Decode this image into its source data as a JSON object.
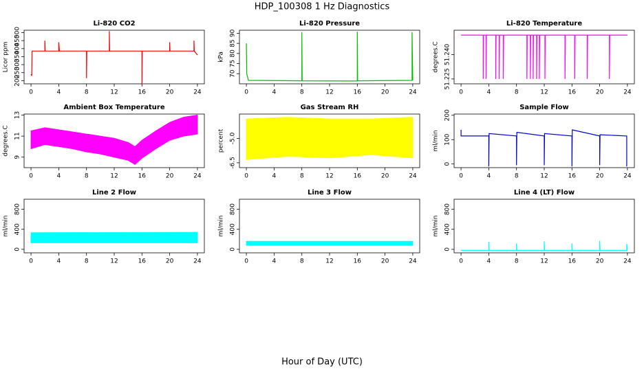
{
  "title": "HDP_100308  1 Hz Diagnostics",
  "xlabel": "Hour of Day (UTC)",
  "chart_data": [
    {
      "type": "line",
      "title": "Li-820 CO2",
      "ylabel": "Licor ppm",
      "color": "#ff0000",
      "xlim": [
        -1,
        25
      ],
      "xticks": [
        0,
        4,
        8,
        12,
        16,
        20,
        24
      ],
      "ylim": [
        180,
        515
      ],
      "yticks": [
        200,
        250,
        300,
        350,
        400,
        450,
        500
      ],
      "x": [
        0,
        0.1,
        0.15,
        0.3,
        2,
        2,
        2.05,
        2.1,
        4,
        4,
        4.1,
        8,
        8,
        8.05,
        11.3,
        11.3,
        11.35,
        16,
        16,
        16.05,
        20,
        20,
        20.05,
        23.5,
        23.5,
        23.55,
        24
      ],
      "values": [
        240,
        230,
        385,
        385,
        385,
        450,
        385,
        385,
        385,
        440,
        385,
        385,
        215,
        385,
        385,
        510,
        385,
        385,
        175,
        385,
        385,
        440,
        385,
        385,
        450,
        385,
        360
      ]
    },
    {
      "type": "line",
      "title": "Li-820 Pressure",
      "ylabel": "kPa",
      "color": "#00bb00",
      "xlim": [
        -1,
        25
      ],
      "xticks": [
        0,
        4,
        8,
        12,
        16,
        20,
        24
      ],
      "ylim": [
        65,
        91.5
      ],
      "yticks": [
        70,
        75,
        80,
        85,
        90
      ],
      "x": [
        0,
        0.05,
        0.3,
        8,
        8,
        8.05,
        16,
        16,
        16.05,
        23.9,
        23.9,
        24
      ],
      "values": [
        85,
        70,
        66.7,
        66.5,
        90.5,
        66.5,
        66.4,
        90.8,
        66.5,
        66.7,
        90.5,
        66.7
      ]
    },
    {
      "type": "line",
      "title": "Li-820 Temperature",
      "ylabel": "degrees.C",
      "color": "#ff00ff",
      "xlim": [
        -1,
        25
      ],
      "xticks": [
        0,
        4,
        8,
        12,
        16,
        20,
        24
      ],
      "ylim": [
        51.222,
        51.255
      ],
      "yticks": [
        51.225,
        {
          "value": 51.24,
          "label": "51.240"
        }
      ],
      "x": [
        0,
        3.2,
        3.2,
        3.25,
        3.6,
        3.6,
        3.65,
        5,
        5,
        5.05,
        5.5,
        5.5,
        5.55,
        6.1,
        6.1,
        6.15,
        9.5,
        9.5,
        9.55,
        10,
        10,
        10.05,
        10.4,
        10.4,
        10.45,
        10.9,
        10.9,
        10.95,
        11.3,
        11.3,
        11.35,
        12.1,
        12.1,
        12.15,
        15,
        15,
        15.05,
        16.4,
        16.4,
        16.45,
        18.2,
        18.2,
        18.25,
        21.4,
        21.4,
        21.45,
        24
      ],
      "values": [
        51.252,
        51.252,
        51.225,
        51.252,
        51.252,
        51.225,
        51.252,
        51.252,
        51.225,
        51.252,
        51.252,
        51.225,
        51.252,
        51.252,
        51.225,
        51.252,
        51.252,
        51.225,
        51.252,
        51.252,
        51.225,
        51.252,
        51.252,
        51.225,
        51.252,
        51.252,
        51.225,
        51.252,
        51.252,
        51.225,
        51.252,
        51.252,
        51.225,
        51.252,
        51.252,
        51.225,
        51.252,
        51.252,
        51.225,
        51.252,
        51.252,
        51.225,
        51.252,
        51.252,
        51.225,
        51.252,
        51.252
      ]
    },
    {
      "type": "band",
      "title": "Ambient Box Temperature",
      "ylabel": "degrees.C",
      "color": "#ff00ff",
      "xlim": [
        -1,
        25
      ],
      "xticks": [
        0,
        4,
        8,
        12,
        16,
        20,
        24
      ],
      "ylim": [
        8,
        13.1
      ],
      "yticks": [
        9,
        11,
        13
      ],
      "x": [
        0,
        2,
        4,
        6,
        8,
        10,
        12,
        14,
        15,
        16,
        18,
        20,
        22,
        24
      ],
      "lower": [
        9.8,
        10.2,
        10,
        9.8,
        9.5,
        9.3,
        9,
        8.7,
        8.3,
        8.9,
        9.8,
        10.6,
        11,
        11.2
      ],
      "upper": [
        11.5,
        11.8,
        11.6,
        11.4,
        11.2,
        11,
        10.8,
        10.4,
        10,
        10.6,
        11.5,
        12.3,
        12.8,
        13
      ]
    },
    {
      "type": "band",
      "title": "Gas Stream RH",
      "ylabel": "percent",
      "color": "#ffff00",
      "xlim": [
        -1,
        25
      ],
      "xticks": [
        0,
        4,
        8,
        12,
        16,
        20,
        24
      ],
      "ylim": [
        -6.8,
        -3.5
      ],
      "yticks": [
        -6.5,
        {
          "value": -5,
          "label": "-5.0"
        }
      ],
      "x": [
        0,
        6,
        12,
        18,
        24
      ],
      "lower": [
        -6.3,
        -6.1,
        -6.2,
        -6.0,
        -6.2
      ],
      "upper": [
        -3.8,
        -3.7,
        -3.8,
        -3.8,
        -3.7
      ]
    },
    {
      "type": "line",
      "title": "Sample Flow",
      "ylabel": "ml/min",
      "color": "#0000cc",
      "xlim": [
        -1,
        25
      ],
      "xticks": [
        0,
        4,
        8,
        12,
        16,
        20,
        24
      ],
      "ylim": [
        -15,
        205
      ],
      "yticks": [
        0,
        100,
        200
      ],
      "x": [
        0,
        0,
        0.1,
        4,
        4,
        4.05,
        8,
        8,
        8.05,
        12,
        12,
        12.05,
        16,
        16,
        16.05,
        20,
        20,
        20.05,
        23.9,
        23.9
      ],
      "values": [
        140,
        115,
        115,
        115,
        -10,
        125,
        115,
        -5,
        130,
        115,
        -5,
        125,
        115,
        -10,
        140,
        115,
        -5,
        120,
        115,
        -10
      ]
    },
    {
      "type": "band",
      "title": "Line 2 Flow",
      "ylabel": "ml/min",
      "color": "#00ffff",
      "xlim": [
        -1,
        25
      ],
      "xticks": [
        0,
        4,
        8,
        12,
        16,
        20,
        24
      ],
      "ylim": [
        -70,
        1000
      ],
      "yticks": [
        0,
        400,
        800
      ],
      "x": [
        0,
        24
      ],
      "lower": [
        130,
        130
      ],
      "upper": [
        330,
        340
      ]
    },
    {
      "type": "band",
      "title": "Line 3 Flow",
      "ylabel": "ml/min",
      "color": "#00ffff",
      "xlim": [
        -1,
        25
      ],
      "xticks": [
        0,
        4,
        8,
        12,
        16,
        20,
        24
      ],
      "ylim": [
        -70,
        1000
      ],
      "yticks": [
        0,
        400,
        800
      ],
      "x": [
        0,
        24
      ],
      "lower": [
        80,
        80
      ],
      "upper": [
        160,
        160
      ]
    },
    {
      "type": "line",
      "title": "Line 4 (LT) Flow",
      "ylabel": "ml/min",
      "color": "#00ffff",
      "xlim": [
        -1,
        25
      ],
      "xticks": [
        0,
        4,
        8,
        12,
        16,
        20,
        24
      ],
      "ylim": [
        -70,
        1000
      ],
      "yticks": [
        0,
        400,
        800
      ],
      "x": [
        0,
        4,
        4,
        4.05,
        8,
        8,
        8.05,
        12,
        12,
        12.05,
        16,
        16,
        16.05,
        20,
        20,
        20.05,
        23.9,
        23.9,
        24
      ],
      "values": [
        -20,
        -20,
        150,
        -20,
        -20,
        120,
        -20,
        -20,
        160,
        -20,
        -20,
        120,
        -20,
        -20,
        170,
        -20,
        -20,
        110,
        -20
      ]
    }
  ]
}
